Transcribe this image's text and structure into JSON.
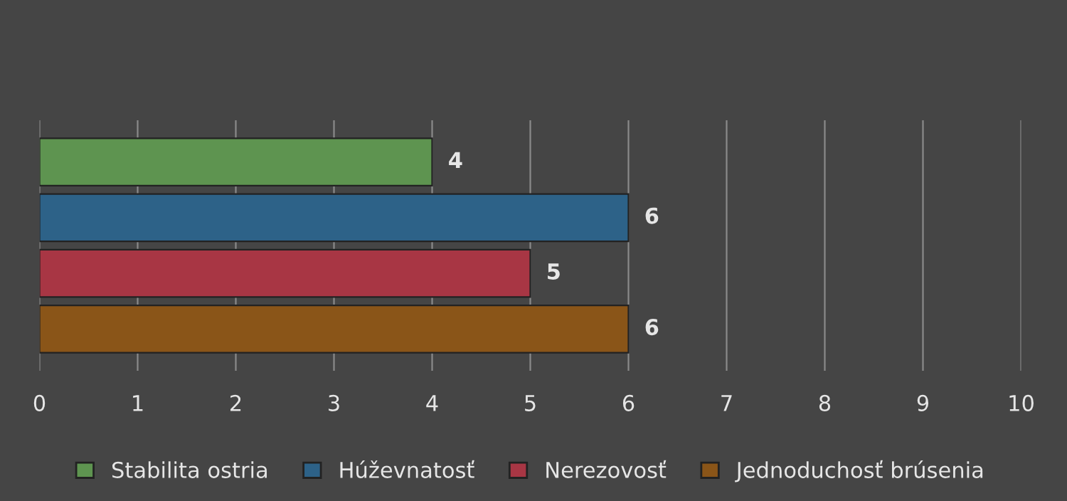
{
  "chart_data": {
    "type": "bar",
    "orientation": "horizontal",
    "categories": [
      null
    ],
    "series": [
      {
        "name": "Stabilita ostria",
        "color": "#5e9450",
        "values": [
          4
        ]
      },
      {
        "name": "Húževnatosť",
        "color": "#2d6288",
        "values": [
          6
        ]
      },
      {
        "name": "Nerezovosť",
        "color": "#a83644",
        "values": [
          5
        ]
      },
      {
        "name": "Jednoduchosť brúsenia",
        "color": "#8a5518",
        "values": [
          6
        ]
      }
    ],
    "xlim": [
      0,
      10
    ],
    "xticks": [
      0,
      1,
      2,
      3,
      4,
      5,
      6,
      7,
      8,
      9,
      10
    ],
    "grid": "x",
    "legend": "bottom",
    "data_labels": true
  }
}
